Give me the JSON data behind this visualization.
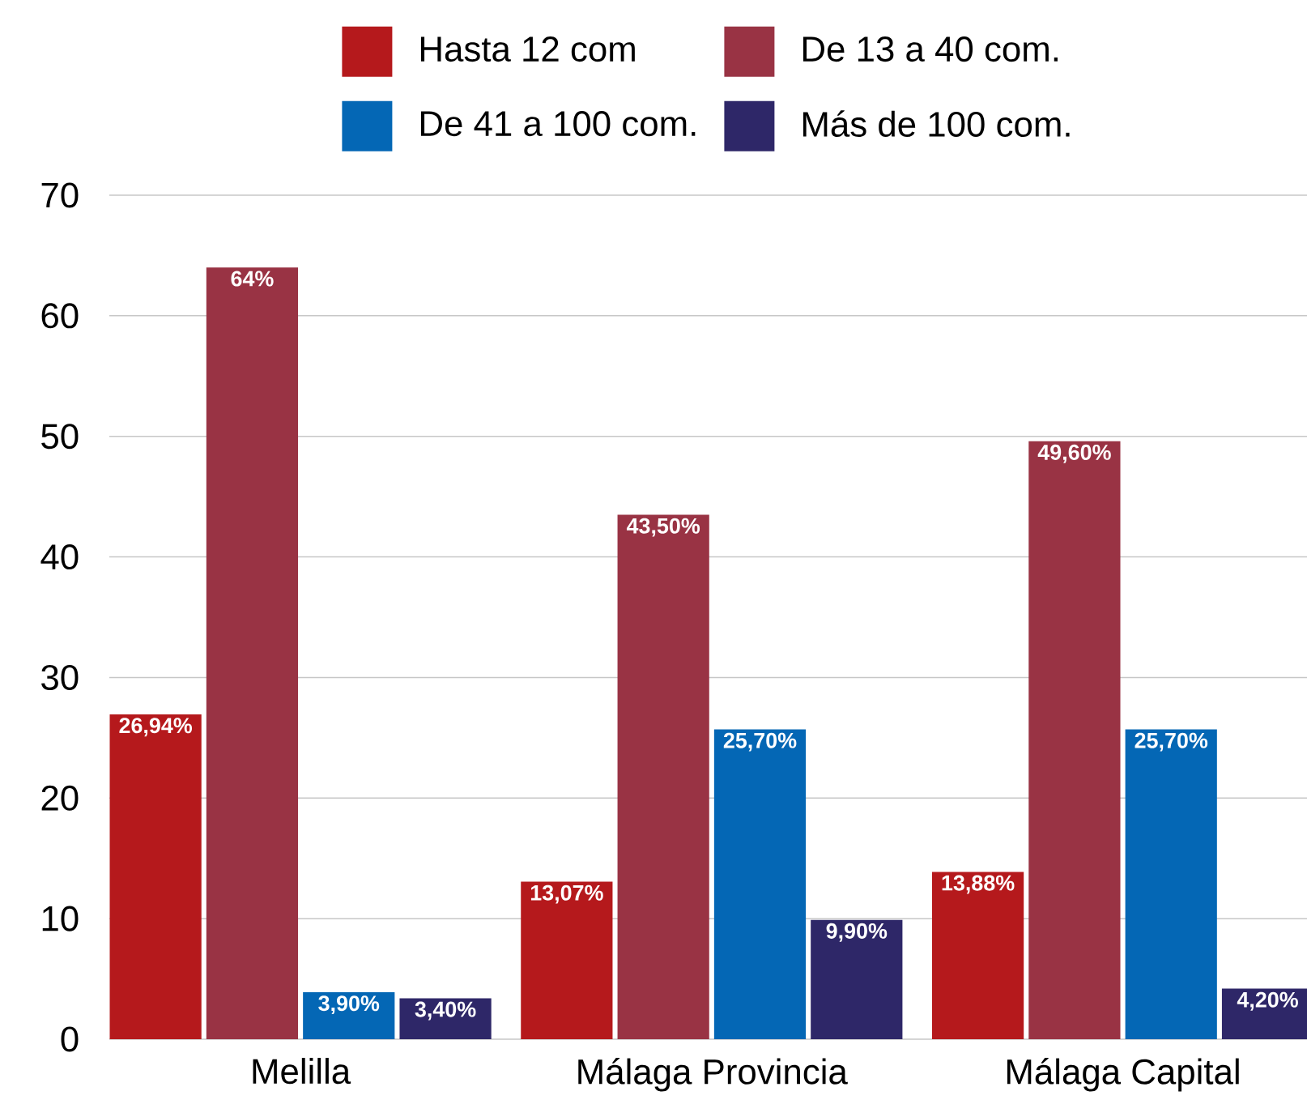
{
  "chart_data": {
    "type": "bar",
    "categories": [
      "Melilla",
      "Málaga Provincia",
      "Málaga Capital"
    ],
    "series": [
      {
        "name": "Hasta 12 com",
        "color": "#b5191c",
        "values": [
          26.94,
          13.07,
          13.88
        ],
        "value_labels": [
          "26,94%",
          "13,07%",
          "13,88%"
        ]
      },
      {
        "name": "De 13 a 40 com.",
        "color": "#993344",
        "values": [
          64,
          43.5,
          49.6
        ],
        "value_labels": [
          "64%",
          "43,50%",
          "49,60%"
        ]
      },
      {
        "name": "De 41 a 100 com.",
        "color": "#0467b5",
        "values": [
          3.9,
          25.7,
          25.7
        ],
        "value_labels": [
          "3,90%",
          "25,70%",
          "25,70%"
        ]
      },
      {
        "name": "Más de 100 com.",
        "color": "#2e2768",
        "values": [
          3.4,
          9.9,
          4.2
        ],
        "value_labels": [
          "3,40%",
          "9,90%",
          "4,20%"
        ]
      }
    ],
    "ylim": [
      0,
      70
    ],
    "yticks": [
      0,
      10,
      20,
      30,
      40,
      50,
      60,
      70
    ],
    "grid": "y",
    "legend": "top"
  }
}
